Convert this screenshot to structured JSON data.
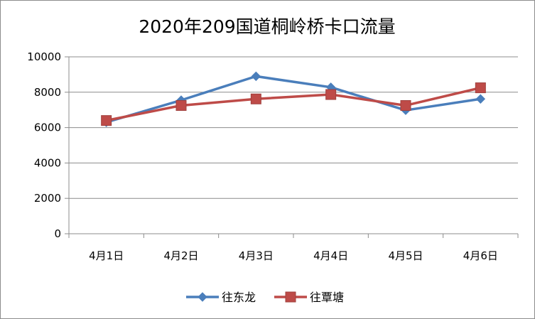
{
  "chart_data": {
    "type": "line",
    "title": "2020年209国道桐岭桥卡口流量",
    "categories": [
      "4月1日",
      "4月2日",
      "4月3日",
      "4月4日",
      "4月5日",
      "4月6日"
    ],
    "ylim": [
      0,
      10000
    ],
    "yticks": [
      0,
      2000,
      4000,
      6000,
      8000,
      10000
    ],
    "grid": "horizontal",
    "legend_position": "bottom",
    "series": [
      {
        "name": "往东龙",
        "values": [
          6300,
          7550,
          8900,
          8280,
          6980,
          7620
        ],
        "color": "#4a7ebb",
        "marker": "diamond"
      },
      {
        "name": "往覃塘",
        "values": [
          6400,
          7250,
          7620,
          7870,
          7250,
          8250
        ],
        "color": "#be4b48",
        "marker": "square"
      }
    ]
  }
}
